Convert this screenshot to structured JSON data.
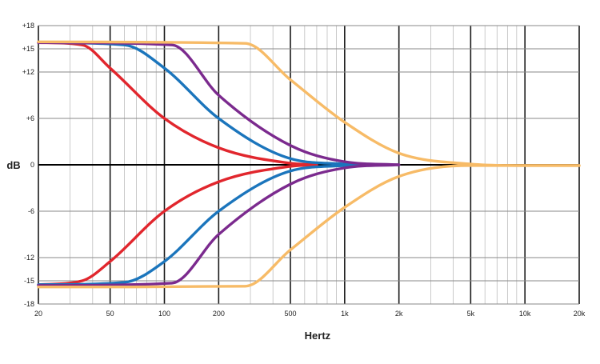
{
  "chart_data": {
    "type": "line",
    "title": "",
    "xlabel": "Hertz",
    "ylabel": "dB",
    "x_scale": "log",
    "xlim": [
      20,
      20000
    ],
    "ylim": [
      -18,
      18
    ],
    "x_ticks": [
      {
        "value": 20,
        "label": "20"
      },
      {
        "value": 50,
        "label": "50"
      },
      {
        "value": 100,
        "label": "100"
      },
      {
        "value": 200,
        "label": "200"
      },
      {
        "value": 500,
        "label": "500"
      },
      {
        "value": 1000,
        "label": "1k"
      },
      {
        "value": 2000,
        "label": "2k"
      },
      {
        "value": 5000,
        "label": "5k"
      },
      {
        "value": 10000,
        "label": "10k"
      },
      {
        "value": 20000,
        "label": "20k"
      }
    ],
    "y_ticks": [
      {
        "value": 18,
        "label": "+18"
      },
      {
        "value": 15,
        "label": "+15"
      },
      {
        "value": 12,
        "label": "+12"
      },
      {
        "value": 6,
        "label": "+6"
      },
      {
        "value": 0,
        "label": "0"
      },
      {
        "value": -6,
        "label": "-6"
      },
      {
        "value": -12,
        "label": "-12"
      },
      {
        "value": -15,
        "label": "-15"
      },
      {
        "value": -18,
        "label": "-18"
      }
    ],
    "grid": true,
    "colors": {
      "red": "#e1262d",
      "blue": "#1b75bc",
      "purple": "#7b2a8e",
      "orange": "#f7bb67"
    },
    "series": [
      {
        "color": "red",
        "x": [
          20,
          35,
          50,
          100,
          200,
          500,
          700
        ],
        "y": [
          15.8,
          15.5,
          12.5,
          6,
          2.2,
          0.2,
          0
        ]
      },
      {
        "color": "red",
        "x": [
          20,
          35,
          50,
          100,
          200,
          500,
          700
        ],
        "y": [
          -15.5,
          -15,
          -12.5,
          -6,
          -2.2,
          -0.2,
          0
        ]
      },
      {
        "color": "blue",
        "x": [
          20,
          60,
          100,
          200,
          500,
          1000,
          1200
        ],
        "y": [
          15.8,
          15.5,
          12.5,
          6,
          0.8,
          0.1,
          0
        ]
      },
      {
        "color": "blue",
        "x": [
          20,
          60,
          100,
          200,
          500,
          1000,
          1200
        ],
        "y": [
          -15.5,
          -15.2,
          -12.5,
          -6,
          -0.8,
          -0.1,
          0
        ]
      },
      {
        "color": "purple",
        "x": [
          20,
          110,
          200,
          500,
          1000,
          2000
        ],
        "y": [
          15.8,
          15.5,
          9,
          2.5,
          0.4,
          0
        ]
      },
      {
        "color": "purple",
        "x": [
          20,
          110,
          200,
          500,
          1000,
          2000
        ],
        "y": [
          -15.6,
          -15.3,
          -9,
          -2.5,
          -0.4,
          0
        ]
      },
      {
        "color": "orange",
        "x": [
          20,
          280,
          500,
          1000,
          2000,
          5000,
          10000,
          20000
        ],
        "y": [
          15.9,
          15.7,
          11,
          5.5,
          1.5,
          0.1,
          -0.1,
          -0.1
        ]
      },
      {
        "color": "orange",
        "x": [
          20,
          280,
          500,
          1000,
          2000,
          5000,
          10000,
          20000
        ],
        "y": [
          -15.8,
          -15.7,
          -11,
          -5.5,
          -1.5,
          -0.1,
          -0.1,
          -0.1
        ]
      }
    ]
  }
}
